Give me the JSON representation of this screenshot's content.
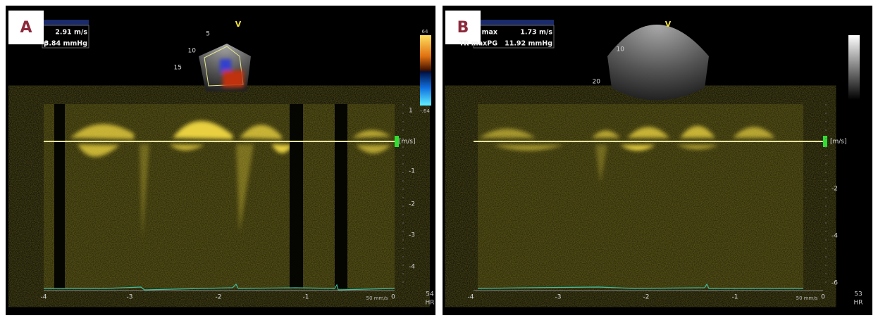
{
  "panels": [
    {
      "label": "A",
      "measurements": [
        "2.91 m/s",
        "p",
        "3.84 mmHg"
      ],
      "probe_mark": "V",
      "depth_labels": [
        "5",
        "10",
        "15"
      ],
      "colorbar_labels": [
        "64",
        "-.64"
      ],
      "velocity_unit": "[m/s]",
      "velocity_labels": [
        "1",
        "-1",
        "-2",
        "-3",
        "-4"
      ],
      "time_labels": [
        "-4",
        "-3",
        "-2",
        "-1",
        "0"
      ],
      "sweep_speed": "50 mm/s",
      "heart_rate": "54",
      "hr_label": "HR"
    },
    {
      "label": "B",
      "measurements": [
        "max",
        "1.73 m/s",
        "TR maxPG",
        "11.92 mmHg"
      ],
      "probe_mark": "V",
      "depth_labels": [
        "10",
        "20"
      ],
      "velocity_unit": "[m/s]",
      "velocity_labels": [
        "-2",
        "-4",
        "-6"
      ],
      "time_labels": [
        "-4",
        "-3",
        "-2",
        "-1",
        "0"
      ],
      "sweep_speed": "50 mm/s",
      "heart_rate": "53",
      "hr_label": "HR"
    }
  ]
}
